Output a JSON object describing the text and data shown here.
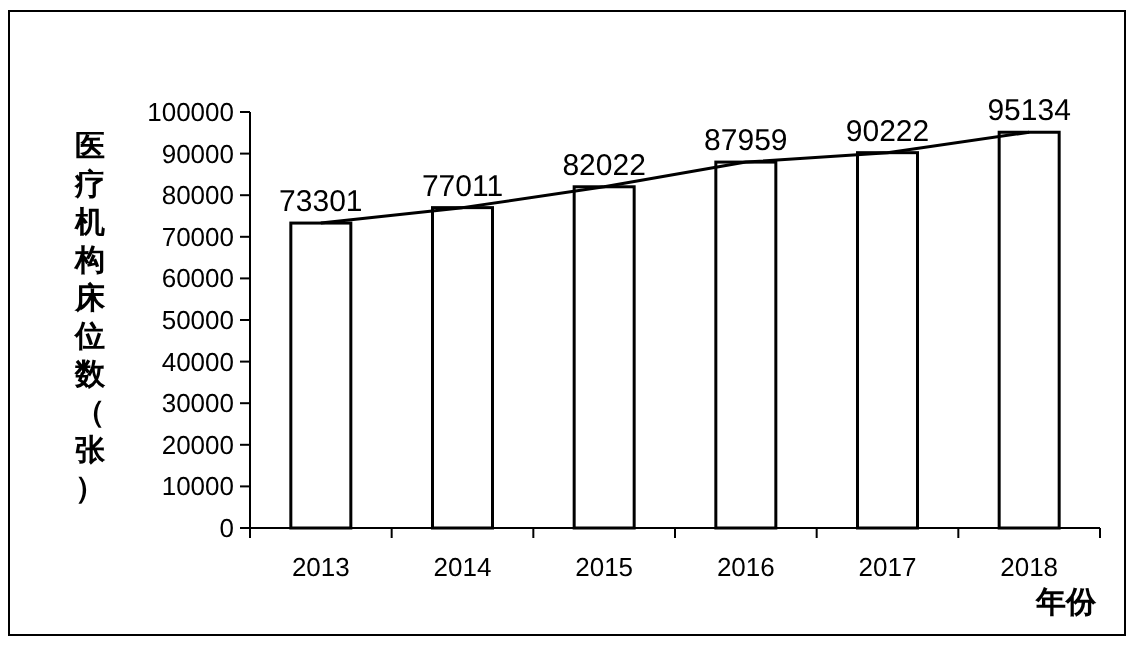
{
  "chart_data": {
    "type": "bar",
    "categories": [
      "2013",
      "2014",
      "2015",
      "2016",
      "2017",
      "2018"
    ],
    "series": [
      {
        "color": "#ffffff",
        "values": [
          73301,
          77011,
          82022,
          87959,
          90222,
          95134
        ],
        "value_labels": [
          "73301",
          "77011",
          "82022",
          "87959",
          "90222",
          "95134"
        ]
      },
      {
        "type": "line",
        "color": "#000000",
        "values": [
          73301,
          77011,
          82022,
          87959,
          90222,
          95134
        ]
      }
    ],
    "ylim": [
      0,
      100000
    ],
    "yticks": [
      0,
      10000,
      20000,
      30000,
      40000,
      50000,
      60000,
      70000,
      80000,
      90000,
      100000
    ],
    "xlabel": "年份",
    "ylabel": "医疗机构床位数（张）",
    "grid": false,
    "marker": "none"
  }
}
